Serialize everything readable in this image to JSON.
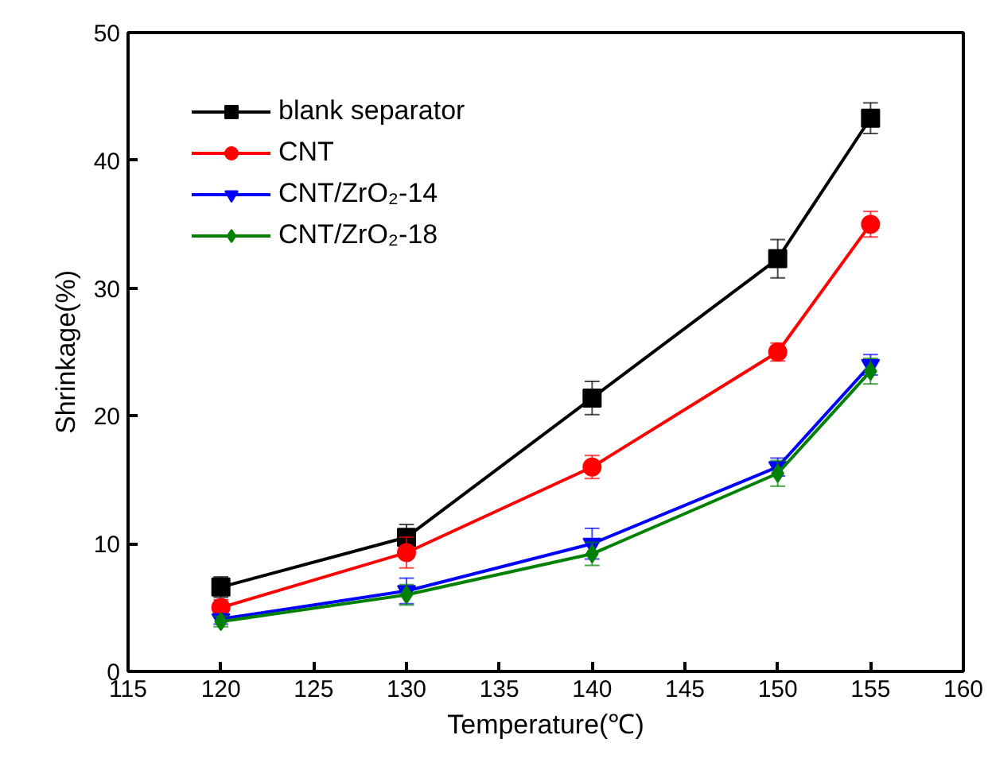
{
  "chart_data": {
    "type": "line",
    "xlabel": "Temperature(℃)",
    "ylabel": "Shrinkage(%)",
    "x": [
      120,
      130,
      140,
      150,
      155
    ],
    "xlim": [
      115,
      160
    ],
    "xticks": [
      115,
      120,
      125,
      130,
      135,
      140,
      145,
      150,
      155,
      160
    ],
    "ylim": [
      0,
      50
    ],
    "yticks": [
      0,
      10,
      20,
      30,
      40,
      50
    ],
    "grid": false,
    "legend": "top left",
    "series": [
      {
        "name": "blank separator",
        "color": "#000000",
        "marker": "square",
        "values": [
          6.6,
          10.5,
          21.4,
          32.3,
          43.3
        ],
        "errors": [
          0.8,
          1.0,
          1.3,
          1.5,
          1.2
        ]
      },
      {
        "name": "CNT",
        "color": "#ff0000",
        "marker": "circle",
        "values": [
          5.0,
          9.3,
          16.0,
          25.0,
          35.0
        ],
        "errors": [
          0.6,
          1.2,
          0.9,
          0.7,
          1.0
        ]
      },
      {
        "name": "CNT/ZrO₂-14",
        "color": "#0000ff",
        "marker": "triangle",
        "values": [
          4.1,
          6.3,
          10.0,
          16.0,
          24.0
        ],
        "errors": [
          0.4,
          1.0,
          1.2,
          0.7,
          0.8
        ]
      },
      {
        "name": "CNT/ZrO₂-18",
        "color": "#008000",
        "marker": "diamond",
        "values": [
          3.9,
          6.0,
          9.2,
          15.5,
          23.5
        ],
        "errors": [
          0.4,
          0.8,
          0.9,
          1.0,
          1.0
        ]
      }
    ]
  }
}
